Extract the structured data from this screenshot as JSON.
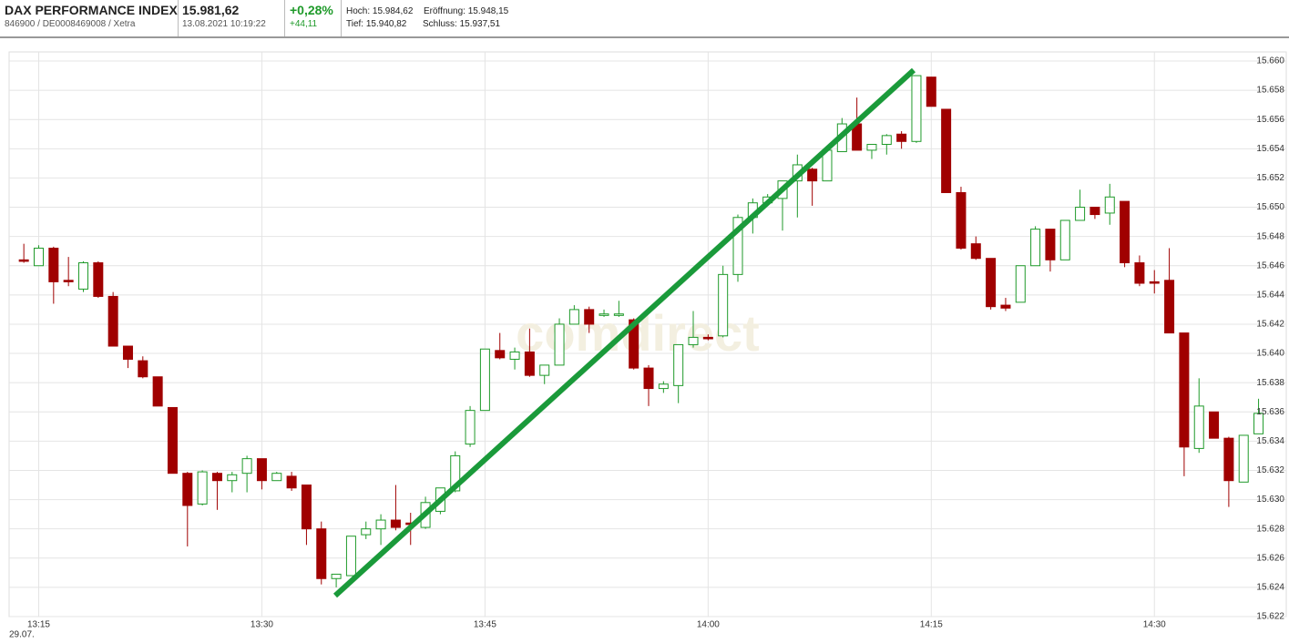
{
  "header": {
    "title": "DAX PERFORMANCE INDEX",
    "id_line": "846900 / DE0008469008 / Xetra",
    "price": "15.981,62",
    "timestamp": "13.08.2021 10:19:22",
    "change_pct": "+0,28%",
    "change_abs": "+44,11",
    "high": "Hoch: 15.984,62",
    "low": "Tief: 15.940,82",
    "open": "Eröffnung: 15.948,15",
    "close": "Schluss: 15.937,51"
  },
  "chart_data": {
    "type": "candlestick",
    "watermark": "comdirect",
    "date_label": "29.07.",
    "categories": [
      null,
      "13:15",
      null,
      null,
      null,
      null,
      null,
      null,
      null,
      null,
      null,
      null,
      null,
      null,
      null,
      null,
      "13:30",
      null,
      null,
      null,
      null,
      null,
      null,
      null,
      null,
      null,
      null,
      null,
      null,
      null,
      null,
      "13:45",
      null,
      null,
      null,
      null,
      null,
      null,
      null,
      null,
      null,
      null,
      null,
      null,
      null,
      null,
      "14:00",
      null,
      null,
      null,
      null,
      null,
      null,
      null,
      null,
      null,
      null,
      null,
      null,
      null,
      null,
      "14:15",
      null,
      null,
      null,
      null,
      null,
      null,
      null,
      null,
      null,
      null,
      null,
      null,
      null,
      null,
      "14:30",
      null,
      null,
      null,
      null,
      null,
      null,
      null
    ],
    "series": [
      {
        "up_color": "#1f9a2a",
        "down_color": "#a00000",
        "open": [
          15646.4,
          15646.0,
          15647.2,
          15645.0,
          15644.4,
          15646.2,
          15643.9,
          15640.5,
          15639.5,
          15638.4,
          15636.3,
          15631.8,
          15629.7,
          15631.8,
          15631.3,
          15631.8,
          15632.8,
          15631.3,
          15631.6,
          15631.0,
          15628.0,
          15624.6,
          15624.8,
          15627.6,
          15628.0,
          15628.6,
          15628.4,
          15628.1,
          15629.2,
          15630.6,
          15633.8,
          15636.1,
          15640.2,
          15639.6,
          15640.1,
          15638.5,
          15639.2,
          15642.0,
          15643.0,
          15642.6,
          15642.6,
          15642.3,
          15639.0,
          15637.6,
          15637.8,
          15640.6,
          15641.1,
          15641.2,
          15645.4,
          15649.3,
          15650.3,
          15650.6,
          15651.8,
          15652.6,
          15651.8,
          15653.8,
          15655.7,
          15653.9,
          15654.3,
          15655.0,
          15654.5,
          15658.9,
          15656.7,
          15651.0,
          15647.5,
          15646.5,
          15643.3,
          15643.5,
          15646.0,
          15648.5,
          15646.4,
          15649.1,
          15650.0,
          15649.6,
          15650.4,
          15646.2,
          15644.9,
          15645.0,
          15641.4,
          15633.5,
          15636.0,
          15634.2,
          15631.2,
          15634.5
        ],
        "high": [
          15647.5,
          15647.4,
          15647.3,
          15646.6,
          15646.3,
          15646.3,
          15644.2,
          15640.5,
          15639.8,
          15638.4,
          15636.3,
          15631.9,
          15632.0,
          15631.9,
          15631.9,
          15633.0,
          15632.8,
          15631.9,
          15631.9,
          15631.0,
          15628.5,
          15624.9,
          15627.5,
          15628.5,
          15629.0,
          15631.0,
          15629.1,
          15630.2,
          15630.8,
          15633.3,
          15636.4,
          15640.3,
          15641.4,
          15640.4,
          15641.7,
          15639.2,
          15642.4,
          15643.3,
          15643.2,
          15643.0,
          15643.6,
          15642.4,
          15639.2,
          15638.1,
          15640.6,
          15642.9,
          15641.3,
          15646.0,
          15649.5,
          15650.6,
          15650.9,
          15651.8,
          15653.6,
          15652.7,
          15654.2,
          15656.1,
          15657.5,
          15654.3,
          15655.0,
          15655.2,
          15659.0,
          15658.9,
          15656.7,
          15651.4,
          15648.0,
          15646.5,
          15643.8,
          15646.0,
          15648.7,
          15648.5,
          15649.1,
          15651.2,
          15650.0,
          15651.6,
          15650.4,
          15646.7,
          15645.7,
          15647.2,
          15641.4,
          15638.3,
          15636.0,
          15634.3,
          15634.4,
          15636.9
        ],
        "low": [
          15646.2,
          15646.0,
          15643.4,
          15644.6,
          15644.2,
          15643.8,
          15640.5,
          15639.0,
          15638.3,
          15636.4,
          15631.8,
          15626.8,
          15629.6,
          15629.3,
          15630.5,
          15630.5,
          15630.7,
          15631.3,
          15630.6,
          15626.9,
          15624.2,
          15624.0,
          15624.8,
          15627.3,
          15626.9,
          15627.9,
          15626.9,
          15628.0,
          15629.0,
          15630.5,
          15633.6,
          15636.1,
          15639.6,
          15638.9,
          15638.4,
          15637.9,
          15639.2,
          15642.0,
          15641.4,
          15642.5,
          15642.5,
          15638.9,
          15636.4,
          15637.3,
          15636.6,
          15640.4,
          15640.9,
          15641.1,
          15644.9,
          15648.2,
          15650.3,
          15648.4,
          15649.3,
          15650.1,
          15651.8,
          15653.8,
          15653.9,
          15653.3,
          15653.6,
          15654.0,
          15654.4,
          15656.9,
          15651.0,
          15647.1,
          15646.4,
          15643.0,
          15642.9,
          15643.5,
          15646.0,
          15645.6,
          15646.4,
          15649.1,
          15649.2,
          15648.8,
          15645.9,
          15644.6,
          15644.1,
          15641.4,
          15631.6,
          15633.2,
          15634.2,
          15629.5,
          15631.2,
          15634.5
        ],
        "close": [
          15646.3,
          15647.2,
          15644.9,
          15644.9,
          15646.2,
          15643.9,
          15640.5,
          15639.6,
          15638.4,
          15636.4,
          15631.8,
          15629.6,
          15631.9,
          15631.3,
          15631.7,
          15632.8,
          15631.3,
          15631.8,
          15630.8,
          15628.0,
          15624.6,
          15624.9,
          15627.5,
          15628.0,
          15628.6,
          15628.1,
          15628.3,
          15629.8,
          15630.8,
          15633.0,
          15636.1,
          15640.3,
          15639.7,
          15640.1,
          15638.5,
          15639.2,
          15642.0,
          15643.0,
          15642.0,
          15642.7,
          15642.7,
          15639.0,
          15637.6,
          15637.9,
          15640.6,
          15641.1,
          15641.0,
          15645.4,
          15649.3,
          15650.3,
          15650.7,
          15651.8,
          15652.9,
          15651.8,
          15653.9,
          15655.7,
          15653.9,
          15654.3,
          15654.9,
          15654.5,
          15659.0,
          15656.9,
          15651.0,
          15647.2,
          15646.5,
          15643.2,
          15643.1,
          15646.0,
          15648.5,
          15646.4,
          15649.1,
          15650.0,
          15649.5,
          15650.7,
          15646.2,
          15644.8,
          15644.8,
          15641.4,
          15633.6,
          15636.4,
          15634.2,
          15631.3,
          15634.4,
          15635.9
        ]
      }
    ],
    "ylim": [
      15622,
      15660
    ],
    "yticks": [
      {
        "value": 15622,
        "label": "15.622"
      },
      {
        "value": 15624,
        "label": "15.624"
      },
      {
        "value": 15626,
        "label": "15.626"
      },
      {
        "value": 15628,
        "label": "15.628"
      },
      {
        "value": 15630,
        "label": "15.630"
      },
      {
        "value": 15632,
        "label": "15.632"
      },
      {
        "value": 15634,
        "label": "15.634"
      },
      {
        "value": 15636,
        "label": "15.636"
      },
      {
        "value": 15638,
        "label": "15.638"
      },
      {
        "value": 15640,
        "label": "15.640"
      },
      {
        "value": 15642,
        "label": "15.642"
      },
      {
        "value": 15644,
        "label": "15.644"
      },
      {
        "value": 15646,
        "label": "15.646"
      },
      {
        "value": 15648,
        "label": "15.648"
      },
      {
        "value": 15650,
        "label": "15.650"
      },
      {
        "value": 15652,
        "label": "15.652"
      },
      {
        "value": 15654,
        "label": "15.654"
      },
      {
        "value": 15656,
        "label": "15.656"
      },
      {
        "value": 15658,
        "label": "15.658"
      },
      {
        "value": 15660,
        "label": "15.660"
      }
    ],
    "grid": true
  }
}
